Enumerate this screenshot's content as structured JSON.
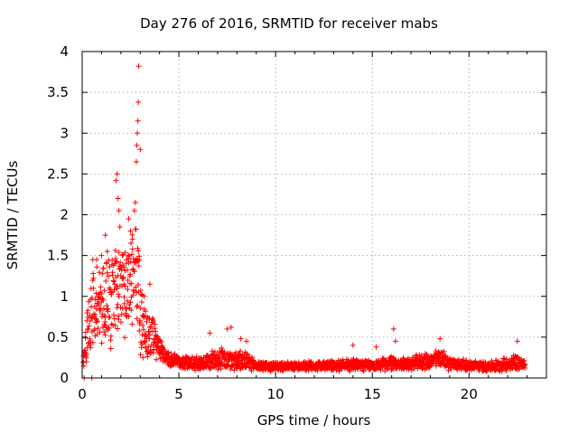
{
  "chart_data": {
    "type": "scatter",
    "title": "Day 276 of 2016, SRMTID for receiver mabs",
    "xlabel": "GPS time / hours",
    "ylabel": "SRMTID / TECUs",
    "xlim": [
      0,
      24
    ],
    "ylim": [
      0,
      4
    ],
    "xticks": [
      0,
      5,
      10,
      15,
      20
    ],
    "yticks": [
      0,
      0.5,
      1,
      1.5,
      2,
      2.5,
      3,
      3.5,
      4
    ],
    "xtick_labels": [
      "0",
      "5",
      "10",
      "15",
      "20"
    ],
    "ytick_labels": [
      "0",
      "0.5",
      "1",
      "1.5",
      "2",
      "2.5",
      "3",
      "3.5",
      "4"
    ],
    "grid": true,
    "marker": "+",
    "series_color": "#ff0000",
    "profile_x": [
      0.0,
      0.3,
      0.6,
      1.0,
      1.5,
      2.0,
      2.5,
      2.8,
      3.0,
      3.3,
      3.6,
      4.0,
      4.5,
      5.0,
      6.0,
      6.5,
      7.0,
      7.5,
      8.0,
      8.5,
      9.0,
      10.0,
      11.0,
      12.0,
      13.0,
      14.0,
      14.5,
      15.0,
      16.0,
      16.5,
      17.0,
      17.5,
      18.0,
      18.5,
      19.0,
      20.0,
      21.0,
      22.0,
      22.5,
      22.9
    ],
    "profile_mean": [
      0.05,
      0.6,
      0.9,
      1.0,
      0.9,
      1.1,
      1.2,
      1.3,
      0.8,
      0.6,
      0.55,
      0.35,
      0.22,
      0.2,
      0.18,
      0.2,
      0.25,
      0.22,
      0.22,
      0.2,
      0.15,
      0.14,
      0.14,
      0.15,
      0.15,
      0.17,
      0.16,
      0.15,
      0.18,
      0.17,
      0.17,
      0.2,
      0.2,
      0.25,
      0.18,
      0.15,
      0.14,
      0.17,
      0.2,
      0.15
    ],
    "profile_spread": [
      0.05,
      0.35,
      0.45,
      0.5,
      0.5,
      0.6,
      0.6,
      0.6,
      0.45,
      0.35,
      0.3,
      0.12,
      0.08,
      0.08,
      0.08,
      0.1,
      0.14,
      0.12,
      0.12,
      0.1,
      0.06,
      0.05,
      0.05,
      0.06,
      0.06,
      0.08,
      0.07,
      0.06,
      0.08,
      0.07,
      0.07,
      0.09,
      0.09,
      0.11,
      0.08,
      0.06,
      0.06,
      0.08,
      0.1,
      0.06
    ],
    "outliers": [
      [
        0.55,
        1.45
      ],
      [
        0.75,
        1.45
      ],
      [
        1.0,
        1.5
      ],
      [
        1.2,
        1.75
      ],
      [
        1.3,
        1.55
      ],
      [
        1.75,
        2.42
      ],
      [
        1.8,
        2.5
      ],
      [
        1.85,
        2.2
      ],
      [
        1.9,
        2.05
      ],
      [
        1.95,
        1.85
      ],
      [
        2.4,
        1.95
      ],
      [
        2.5,
        1.8
      ],
      [
        2.6,
        1.7
      ],
      [
        2.7,
        2.05
      ],
      [
        2.75,
        2.15
      ],
      [
        2.8,
        2.65
      ],
      [
        2.82,
        2.85
      ],
      [
        2.85,
        3.0
      ],
      [
        2.88,
        3.15
      ],
      [
        2.9,
        3.38
      ],
      [
        2.92,
        3.82
      ],
      [
        3.0,
        2.8
      ],
      [
        2.95,
        1.45
      ],
      [
        3.2,
        1.0
      ],
      [
        3.5,
        1.15
      ],
      [
        6.6,
        0.55
      ],
      [
        7.5,
        0.6
      ],
      [
        7.7,
        0.62
      ],
      [
        8.2,
        0.48
      ],
      [
        8.5,
        0.45
      ],
      [
        14.0,
        0.4
      ],
      [
        15.2,
        0.38
      ],
      [
        16.1,
        0.6
      ],
      [
        16.2,
        0.45
      ],
      [
        18.5,
        0.48
      ],
      [
        22.5,
        0.45
      ],
      [
        0.1,
        0.0
      ],
      [
        0.5,
        0.0
      ]
    ]
  }
}
